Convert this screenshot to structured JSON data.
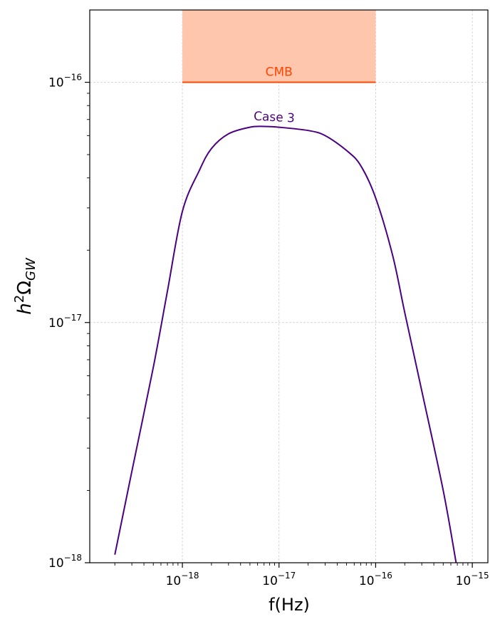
{
  "chart_data": {
    "type": "line",
    "xscale": "log",
    "yscale": "log",
    "xlabel": "f(Hz)",
    "ylabel_main": "h",
    "ylabel_sup": "2",
    "ylabel_omega": "Ω",
    "ylabel_sub": "GW",
    "xlim": [
      1.1e-19,
      1.45e-15
    ],
    "ylim": [
      1e-18,
      2e-16
    ],
    "grid": true,
    "x_ticks": [
      {
        "value": 1e-18,
        "base": "10",
        "exp": "−18"
      },
      {
        "value": 1e-17,
        "base": "10",
        "exp": "−17"
      },
      {
        "value": 1e-16,
        "base": "10",
        "exp": "−16"
      },
      {
        "value": 1e-15,
        "base": "10",
        "exp": "−15"
      }
    ],
    "y_ticks": [
      {
        "value": 1e-18,
        "base": "10",
        "exp": "−18"
      },
      {
        "value": 1e-17,
        "base": "10",
        "exp": "−17"
      },
      {
        "value": 1e-16,
        "base": "10",
        "exp": "−16"
      }
    ],
    "series": [
      {
        "name": "Case 3",
        "color": "#4b0082",
        "x": [
          2e-19,
          3e-19,
          5e-19,
          7e-19,
          1e-18,
          1.5e-18,
          2e-18,
          3e-18,
          5e-18,
          7e-18,
          1e-17,
          2e-17,
          3e-17,
          5e-17,
          7e-17,
          1e-16,
          1.5e-16,
          2e-16,
          3e-16,
          5e-16,
          6.8e-16
        ],
        "y": [
          1.08e-18,
          2.4e-18,
          6.5e-18,
          1.35e-17,
          2.9e-17,
          4.3e-17,
          5.3e-17,
          6.1e-17,
          6.5e-17,
          6.55e-17,
          6.5e-17,
          6.3e-17,
          6e-17,
          5.2e-17,
          4.5e-17,
          3.3e-17,
          1.9e-17,
          1.1e-17,
          5.2e-18,
          2e-18,
          1e-18
        ]
      }
    ],
    "regions": [
      {
        "name": "CMB",
        "x_range": [
          1e-18,
          1e-16
        ],
        "y_range": [
          1e-16,
          2e-16
        ],
        "fill_color": "#ffc6ae",
        "line_color": "#ff4500"
      }
    ]
  }
}
